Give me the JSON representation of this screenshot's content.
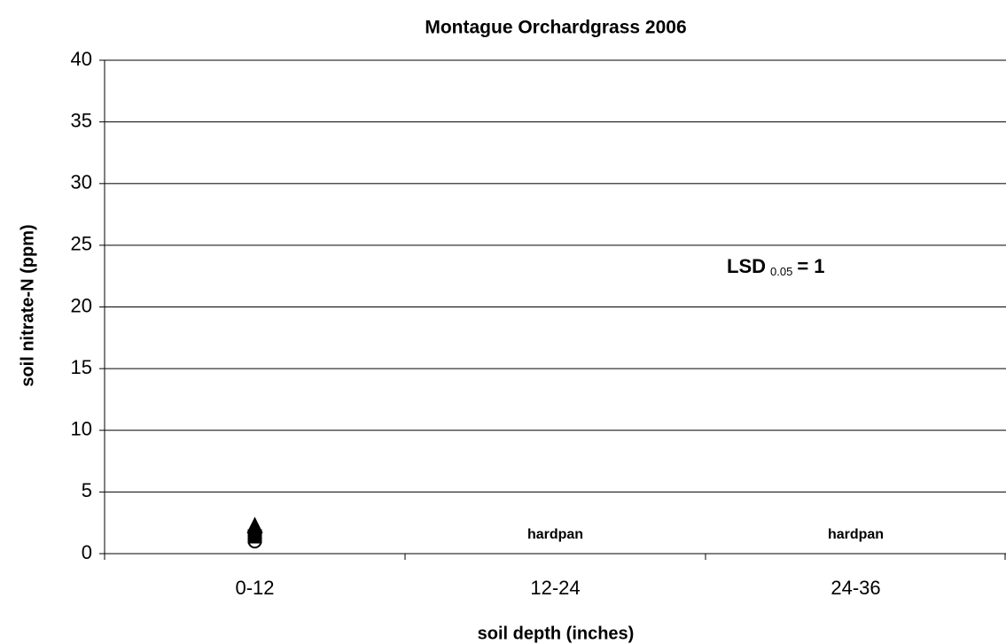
{
  "chart_data": {
    "type": "scatter",
    "title": "Montague Orchardgrass 2006",
    "x_label": "soil depth (inches)",
    "y_label": "soil nitrate-N (ppm)",
    "categories": [
      "0-12",
      "12-24",
      "24-36"
    ],
    "series": [
      {
        "shape": "triangle",
        "color": "#000000",
        "values": [
          2.2,
          null,
          null
        ]
      },
      {
        "shape": "diamond",
        "color": "#000000",
        "values": [
          1.7,
          null,
          null
        ]
      },
      {
        "shape": "square",
        "color": "#000000",
        "values": [
          1.4,
          null,
          null
        ]
      },
      {
        "shape": "circle",
        "color": "#000000",
        "values": [
          1.0,
          null,
          null
        ]
      }
    ],
    "ylim": [
      0,
      40
    ],
    "yticks": [
      0,
      5,
      10,
      15,
      20,
      25,
      30,
      35,
      40
    ],
    "grid": true,
    "annotations": [
      {
        "text": "hardpan",
        "x": "12-24"
      },
      {
        "text": "hardpan",
        "x": "24-36"
      }
    ],
    "lsd": {
      "text": "LSD",
      "subscript": "0.05",
      "suffix": "= 1"
    }
  }
}
